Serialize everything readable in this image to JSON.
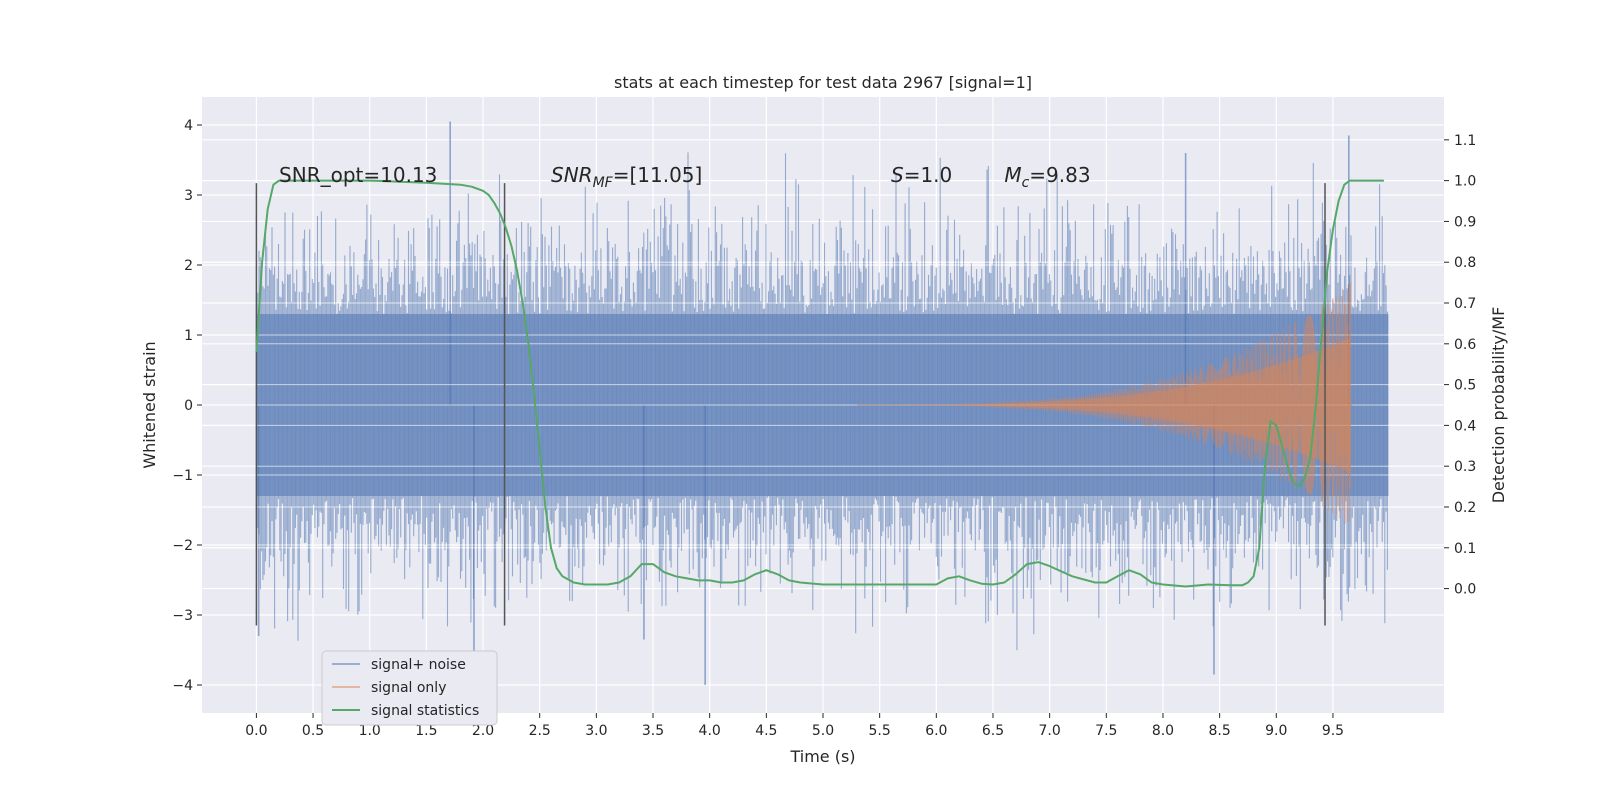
{
  "chart_data": {
    "type": "line",
    "title": "stats at each timestep for test data 2967 [signal=1]",
    "xlabel": "Time (s)",
    "ylabel": "Whitened strain",
    "ylabel_right": "Detection probability/MF",
    "xlim": [
      -0.48,
      10.48
    ],
    "ylim": [
      -4.4,
      4.4
    ],
    "ylim_right": [
      -0.305,
      1.205
    ],
    "x_ticks": [
      0.0,
      0.5,
      1.0,
      1.5,
      2.0,
      2.5,
      3.0,
      3.5,
      4.0,
      4.5,
      5.0,
      5.5,
      6.0,
      6.5,
      7.0,
      7.5,
      8.0,
      8.5,
      9.0,
      9.5
    ],
    "x_tick_labels": [
      "0.0",
      "0.5",
      "1.0",
      "1.5",
      "2.0",
      "2.5",
      "3.0",
      "3.5",
      "4.0",
      "4.5",
      "5.0",
      "5.5",
      "6.0",
      "6.5",
      "7.0",
      "7.5",
      "8.0",
      "8.5",
      "9.0",
      "9.5"
    ],
    "y_ticks": [
      -4,
      -3,
      -2,
      -1,
      0,
      1,
      2,
      3,
      4
    ],
    "y_tick_labels": [
      "−4",
      "−3",
      "−2",
      "−1",
      "0",
      "1",
      "2",
      "3",
      "4"
    ],
    "y_right_ticks": [
      0.0,
      0.1,
      0.2,
      0.3,
      0.4,
      0.5,
      0.6,
      0.7,
      0.8,
      0.9,
      1.0,
      1.1
    ],
    "y_right_tick_labels": [
      "0.0",
      "0.1",
      "0.2",
      "0.3",
      "0.4",
      "0.5",
      "0.6",
      "0.7",
      "0.8",
      "0.9",
      "1.0",
      "1.1"
    ],
    "grid": true,
    "legend_position": "lower-left",
    "colors": {
      "background": "#eaeaf2",
      "grid": "#ffffff",
      "noise": "#4c72b0",
      "signal": "#dd8452",
      "statistics": "#55a868",
      "vlines": "#555555"
    },
    "series": [
      {
        "name": "signal+ noise",
        "axis": "left",
        "x_range": [
          0.0,
          9.99
        ],
        "envelope_typical": 1.3,
        "peak_max": 4.05,
        "peak_min": -4.0
      },
      {
        "name": "signal only",
        "axis": "left",
        "x_range": [
          5.3,
          9.67
        ],
        "amplitude_start": 0.0,
        "amplitude_peak": 1.75,
        "peak_time": 9.65
      },
      {
        "name": "signal statistics",
        "axis": "right",
        "x": [
          0.0,
          0.05,
          0.1,
          0.15,
          0.2,
          0.3,
          0.5,
          1.0,
          1.5,
          1.8,
          1.9,
          2.0,
          2.05,
          2.1,
          2.15,
          2.2,
          2.25,
          2.3,
          2.35,
          2.4,
          2.45,
          2.5,
          2.55,
          2.6,
          2.65,
          2.7,
          2.8,
          2.9,
          3.0,
          3.1,
          3.2,
          3.3,
          3.4,
          3.5,
          3.6,
          3.7,
          3.8,
          3.9,
          4.0,
          4.1,
          4.2,
          4.3,
          4.4,
          4.5,
          4.6,
          4.7,
          4.8,
          5.0,
          5.5,
          6.0,
          6.1,
          6.2,
          6.3,
          6.4,
          6.5,
          6.6,
          6.7,
          6.8,
          6.9,
          7.0,
          7.2,
          7.4,
          7.5,
          7.6,
          7.7,
          7.8,
          7.9,
          8.0,
          8.2,
          8.4,
          8.6,
          8.7,
          8.75,
          8.8,
          8.85,
          8.9,
          8.95,
          9.0,
          9.05,
          9.1,
          9.15,
          9.2,
          9.25,
          9.3,
          9.35,
          9.4,
          9.45,
          9.5,
          9.55,
          9.6,
          9.65,
          9.7,
          9.8,
          9.9,
          9.95
        ],
        "y": [
          0.58,
          0.8,
          0.93,
          0.99,
          1.0,
          1.0,
          1.0,
          1.0,
          0.995,
          0.99,
          0.985,
          0.975,
          0.965,
          0.945,
          0.92,
          0.885,
          0.84,
          0.78,
          0.7,
          0.6,
          0.48,
          0.34,
          0.2,
          0.1,
          0.05,
          0.03,
          0.015,
          0.01,
          0.01,
          0.01,
          0.015,
          0.03,
          0.06,
          0.06,
          0.04,
          0.03,
          0.025,
          0.02,
          0.02,
          0.015,
          0.015,
          0.02,
          0.035,
          0.045,
          0.035,
          0.02,
          0.015,
          0.01,
          0.01,
          0.01,
          0.025,
          0.03,
          0.02,
          0.012,
          0.01,
          0.015,
          0.035,
          0.06,
          0.065,
          0.055,
          0.03,
          0.015,
          0.015,
          0.03,
          0.045,
          0.035,
          0.015,
          0.01,
          0.005,
          0.01,
          0.008,
          0.008,
          0.015,
          0.03,
          0.1,
          0.3,
          0.41,
          0.4,
          0.35,
          0.3,
          0.26,
          0.25,
          0.27,
          0.32,
          0.45,
          0.62,
          0.78,
          0.88,
          0.95,
          0.99,
          1.0,
          1.0,
          1.0,
          1.0,
          1.0
        ]
      }
    ],
    "vlines": [
      {
        "x": 0.0,
        "ymin": -3.15,
        "ymax": 3.17
      },
      {
        "x": 2.19,
        "ymin": -3.15,
        "ymax": 3.17
      },
      {
        "x": 9.43,
        "ymin": -3.15,
        "ymax": 3.17
      }
    ],
    "annotations": [
      {
        "text": "SNR_opt=10.13",
        "x": 0.2,
        "y": 3.17
      },
      {
        "pre": "SNR",
        "sub": "MF",
        "post": "=[11.05]",
        "x": 2.6,
        "y": 3.17
      },
      {
        "pre": "S",
        "post": "=1.0",
        "x": 5.6,
        "y": 3.17
      },
      {
        "pre": "M",
        "sub": "c",
        "post": "=9.83",
        "x": 6.6,
        "y": 3.17
      }
    ],
    "legend": [
      "signal+ noise",
      "signal only",
      "signal statistics"
    ]
  }
}
